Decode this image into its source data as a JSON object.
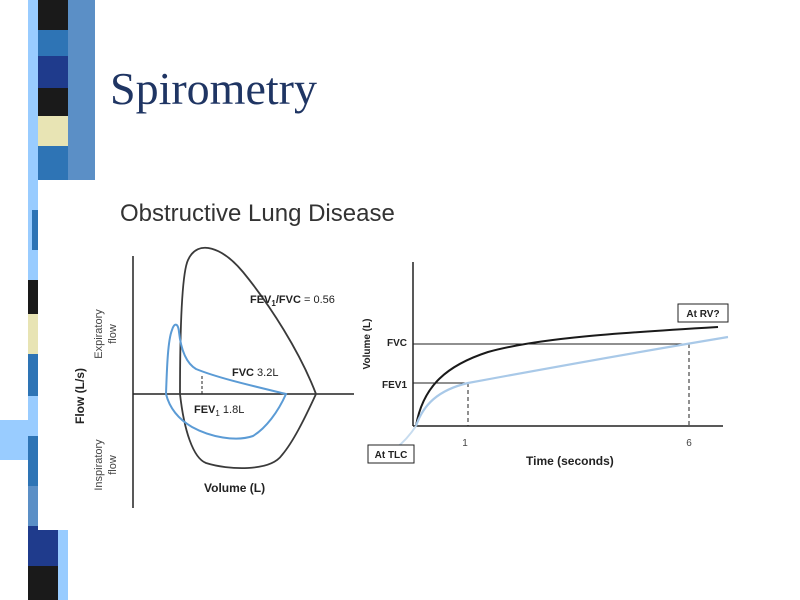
{
  "slide": {
    "title": "Spirometry"
  },
  "figure": {
    "subtitle": "Obstructive Lung Disease"
  },
  "flow_volume_panel": {
    "y_axis_label": "Flow (L/s)",
    "expiratory_label_1": "Expiratory",
    "expiratory_label_2": "flow",
    "inspiratory_label_1": "Inspiratory",
    "inspiratory_label_2": "flow",
    "x_axis_label": "Volume (L)",
    "ratio_prefix": "FEV",
    "ratio_sub": "1",
    "ratio_mid": "/FVC",
    "ratio_value": " = 0.56",
    "fvc_label": "FVC",
    "fvc_value": " 3.2L",
    "fev1_prefix": "FEV",
    "fev1_sub": "1",
    "fev1_value": " 1.8L"
  },
  "volume_time_panel": {
    "y_axis_label": "Volume (L)",
    "x_axis_label": "Time (seconds)",
    "fvc_label": "FVC",
    "fev1_label": "FEV1",
    "tick_1": "1",
    "tick_6": "6",
    "box_rv": "At RV?",
    "box_tlc": "At TLC"
  },
  "colors": {
    "title": "#1f3563",
    "text": "#222222",
    "normal_curve": "#3a3a3a",
    "obstructive_curve": "#5b9bd5",
    "light_curve": "#a9c9e8",
    "strip": [
      "#1a1a1a",
      "#2e74b5",
      "#e8e4b4",
      "#5b8fc6",
      "#99ccff",
      "#ffffff",
      "#1f3b8c"
    ]
  }
}
